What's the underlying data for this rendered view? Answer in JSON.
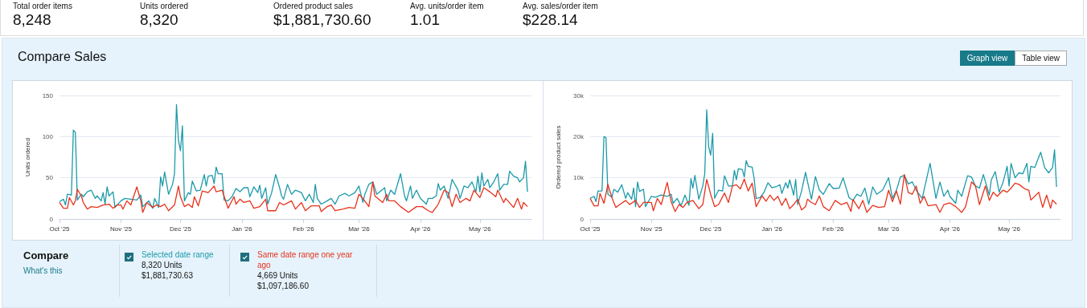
{
  "chart_data": [
    {
      "type": "other",
      "annotations": [
        "Total order items",
        "8,248",
        "Units ordered",
        "8,320",
        "Ordered product sales",
        "$1,881,730.60",
        "Avg. units/order item",
        "1.01",
        "Avg. sales/order item",
        "$228.14"
      ]
    },
    {
      "type": "other",
      "title": "Compare Sales",
      "annotations": [
        "Graph view",
        "Table view"
      ]
    },
    {
      "type": "line",
      "ylabel": "Units ordered",
      "grid": "y",
      "marker": "none",
      "xlim": [
        "2025-10-01",
        "2026-05-27"
      ],
      "xticks": [
        {
          "value": "2025-10-01",
          "label": "Oct '25"
        },
        {
          "value": "2025-11-01",
          "label": "Nov '25"
        },
        {
          "value": "2025-12-01",
          "label": "Dec '25"
        },
        {
          "value": "2026-01-01",
          "label": "Jan '26"
        },
        {
          "value": "2026-02-01",
          "label": "Feb '26"
        },
        {
          "value": "2026-03-01",
          "label": "Mar '26"
        },
        {
          "value": "2026-04-01",
          "label": "Apr '26"
        },
        {
          "value": "2026-05-01",
          "label": "May '26"
        }
      ],
      "ylim": [
        0,
        150
      ],
      "yticks": [
        0,
        50,
        100,
        150
      ],
      "series": [
        {
          "color": "#1c9aaa",
          "x": [
            "2025-10-01",
            "2025-10-03",
            "2025-10-04",
            "2025-10-05",
            "2025-10-07",
            "2025-10-08",
            "2025-10-09",
            "2025-10-10",
            "2025-10-12",
            "2025-10-13",
            "2025-10-15",
            "2025-10-17",
            "2025-10-19",
            "2025-10-20",
            "2025-10-22",
            "2025-10-23",
            "2025-10-24",
            "2025-10-25",
            "2025-10-26",
            "2025-10-28",
            "2025-10-29",
            "2025-11-01",
            "2025-11-03",
            "2025-11-06",
            "2025-11-09",
            "2025-11-11",
            "2025-11-12",
            "2025-11-15",
            "2025-11-17",
            "2025-11-18",
            "2025-11-20",
            "2025-11-21",
            "2025-11-22",
            "2025-11-23",
            "2025-11-25",
            "2025-11-27",
            "2025-11-28",
            "2025-11-29",
            "2025-11-30",
            "2025-12-01",
            "2025-12-02",
            "2025-12-03",
            "2025-12-05",
            "2025-12-06",
            "2025-12-07",
            "2025-12-09",
            "2025-12-11",
            "2025-12-13",
            "2025-12-14",
            "2025-12-15",
            "2025-12-17",
            "2025-12-18",
            "2025-12-19",
            "2025-12-20",
            "2025-12-22",
            "2025-12-23",
            "2025-12-25",
            "2025-12-27",
            "2025-12-29",
            "2025-12-31",
            "2026-01-02",
            "2026-01-04",
            "2026-01-05",
            "2026-01-07",
            "2026-01-09",
            "2026-01-10",
            "2026-01-11",
            "2026-01-13",
            "2026-01-14",
            "2026-01-16",
            "2026-01-18",
            "2026-01-20",
            "2026-01-21",
            "2026-01-22",
            "2026-01-24",
            "2026-01-26",
            "2026-01-28",
            "2026-01-31",
            "2026-02-02",
            "2026-02-04",
            "2026-02-06",
            "2026-02-07",
            "2026-02-08",
            "2026-02-10",
            "2026-02-13",
            "2026-02-15",
            "2026-02-17",
            "2026-02-19",
            "2026-02-22",
            "2026-02-24",
            "2026-02-27",
            "2026-03-01",
            "2026-03-03",
            "2026-03-04",
            "2026-03-06",
            "2026-03-08",
            "2026-03-10",
            "2026-03-11",
            "2026-03-14",
            "2026-03-15",
            "2026-03-17",
            "2026-03-19",
            "2026-03-22",
            "2026-03-24",
            "2026-03-25",
            "2026-03-27",
            "2026-03-28",
            "2026-03-30",
            "2026-04-01",
            "2026-04-04",
            "2026-04-05",
            "2026-04-07",
            "2026-04-09",
            "2026-04-10",
            "2026-04-11",
            "2026-04-13",
            "2026-04-15",
            "2026-04-17",
            "2026-04-20",
            "2026-04-21",
            "2026-04-23",
            "2026-04-25",
            "2026-04-27",
            "2026-04-29",
            "2026-04-30",
            "2026-05-01",
            "2026-05-02",
            "2026-05-03",
            "2026-05-05",
            "2026-05-06",
            "2026-05-08",
            "2026-05-10",
            "2026-05-11",
            "2026-05-13",
            "2026-05-15",
            "2026-05-16",
            "2026-05-18",
            "2026-05-20",
            "2026-05-21",
            "2026-05-23",
            "2026-05-24",
            "2026-05-25"
          ],
          "values": [
            21,
            24,
            17,
            30,
            29,
            108,
            105,
            23,
            30,
            27,
            33,
            35,
            25,
            28,
            22,
            32,
            18,
            39,
            28,
            33,
            14,
            22,
            25,
            24,
            23,
            29,
            15,
            22,
            13,
            25,
            14,
            51,
            40,
            57,
            30,
            42,
            55,
            139,
            95,
            83,
            113,
            22,
            32,
            30,
            46,
            34,
            35,
            54,
            40,
            52,
            53,
            43,
            63,
            55,
            55,
            23,
            22,
            27,
            37,
            33,
            38,
            38,
            27,
            39,
            32,
            41,
            25,
            38,
            18,
            32,
            54,
            38,
            28,
            24,
            42,
            30,
            35,
            32,
            22,
            30,
            20,
            42,
            25,
            18,
            22,
            25,
            18,
            28,
            31,
            28,
            32,
            40,
            20,
            30,
            42,
            45,
            30,
            32,
            38,
            22,
            35,
            30,
            55,
            28,
            22,
            40,
            25,
            35,
            25,
            18,
            25,
            25,
            28,
            43,
            35,
            40,
            25,
            48,
            35,
            25,
            40,
            38,
            45,
            33,
            52,
            33,
            56,
            40,
            48,
            38,
            45,
            55,
            35,
            42,
            42,
            58,
            52,
            50,
            45,
            50,
            70,
            33
          ]
        },
        {
          "color": "#e8321c",
          "x": [
            "2025-10-01",
            "2025-10-03",
            "2025-10-05",
            "2025-10-06",
            "2025-10-08",
            "2025-10-09",
            "2025-10-10",
            "2025-10-12",
            "2025-10-13",
            "2025-10-15",
            "2025-10-17",
            "2025-10-20",
            "2025-10-23",
            "2025-10-26",
            "2025-10-28",
            "2025-10-30",
            "2025-11-01",
            "2025-11-02",
            "2025-11-04",
            "2025-11-06",
            "2025-11-09",
            "2025-11-11",
            "2025-11-12",
            "2025-11-14",
            "2025-11-17",
            "2025-11-19",
            "2025-11-21",
            "2025-11-23",
            "2025-11-25",
            "2025-11-28",
            "2025-11-30",
            "2025-12-01",
            "2025-12-03",
            "2025-12-05",
            "2025-12-07",
            "2025-12-08",
            "2025-12-10",
            "2025-12-12",
            "2025-12-15",
            "2025-12-18",
            "2025-12-19",
            "2025-12-22",
            "2025-12-25",
            "2025-12-28",
            "2025-12-29",
            "2025-12-31",
            "2026-01-02",
            "2026-01-05",
            "2026-01-07",
            "2026-01-10",
            "2026-01-13",
            "2026-01-14",
            "2026-01-18",
            "2026-01-20",
            "2026-01-22",
            "2026-01-26",
            "2026-01-28",
            "2026-01-31",
            "2026-02-02",
            "2026-02-05",
            "2026-02-09",
            "2026-02-10",
            "2026-02-13",
            "2026-02-15",
            "2026-02-17",
            "2026-02-21",
            "2026-02-24",
            "2026-02-27",
            "2026-03-01",
            "2026-03-03",
            "2026-03-06",
            "2026-03-08",
            "2026-03-09",
            "2026-03-13",
            "2026-03-15",
            "2026-03-16",
            "2026-03-19",
            "2026-03-22",
            "2026-03-26",
            "2026-03-30",
            "2026-04-02",
            "2026-04-05",
            "2026-04-07",
            "2026-04-10",
            "2026-04-13",
            "2026-04-15",
            "2026-04-17",
            "2026-04-19",
            "2026-04-21",
            "2026-04-24",
            "2026-04-26",
            "2026-04-28",
            "2026-05-01",
            "2026-05-03",
            "2026-05-06",
            "2026-05-09",
            "2026-05-10",
            "2026-05-13",
            "2026-05-14",
            "2026-05-18",
            "2026-05-20",
            "2026-05-22",
            "2026-05-23",
            "2026-05-25"
          ],
          "values": [
            20,
            13,
            13,
            26,
            17,
            22,
            36,
            28,
            20,
            12,
            15,
            14,
            17,
            18,
            13,
            17,
            17,
            12,
            22,
            17,
            39,
            22,
            8,
            20,
            14,
            17,
            15,
            18,
            10,
            17,
            40,
            27,
            15,
            18,
            14,
            27,
            16,
            34,
            32,
            40,
            33,
            35,
            13,
            27,
            18,
            24,
            20,
            22,
            13,
            15,
            24,
            10,
            10,
            20,
            17,
            22,
            12,
            20,
            10,
            16,
            16,
            9,
            15,
            17,
            10,
            12,
            14,
            13,
            30,
            25,
            15,
            45,
            28,
            20,
            30,
            22,
            22,
            15,
            8,
            15,
            15,
            10,
            8,
            18,
            35,
            32,
            15,
            30,
            20,
            25,
            22,
            35,
            26,
            38,
            33,
            27,
            35,
            20,
            25,
            14,
            25,
            12,
            20,
            15
          ]
        }
      ]
    },
    {
      "type": "line",
      "ylabel": "Ordered product sales",
      "grid": "y",
      "marker": "none",
      "xlim": [
        "2025-10-01",
        "2026-05-27"
      ],
      "xticks": [
        {
          "value": "2025-10-01",
          "label": "Oct '25"
        },
        {
          "value": "2025-11-01",
          "label": "Nov '25"
        },
        {
          "value": "2025-12-01",
          "label": "Dec '25"
        },
        {
          "value": "2026-01-01",
          "label": "Jan '26"
        },
        {
          "value": "2026-02-01",
          "label": "Feb '26"
        },
        {
          "value": "2026-03-01",
          "label": "Mar '26"
        },
        {
          "value": "2026-04-01",
          "label": "Apr '26"
        },
        {
          "value": "2026-05-01",
          "label": "May '26"
        }
      ],
      "ylim": [
        0,
        30000
      ],
      "yticks": [
        0,
        {
          "value": 10000,
          "label": "10k"
        },
        {
          "value": 20000,
          "label": "20k"
        },
        {
          "value": 30000,
          "label": "30k"
        }
      ],
      "series": [
        {
          "color": "#1c9aaa",
          "x": [
            "2025-10-01",
            "2025-10-03",
            "2025-10-04",
            "2025-10-05",
            "2025-10-07",
            "2025-10-08",
            "2025-10-09",
            "2025-10-10",
            "2025-10-12",
            "2025-10-13",
            "2025-10-15",
            "2025-10-17",
            "2025-10-19",
            "2025-10-20",
            "2025-10-22",
            "2025-10-23",
            "2025-10-24",
            "2025-10-25",
            "2025-10-26",
            "2025-10-28",
            "2025-10-29",
            "2025-11-01",
            "2025-11-03",
            "2025-11-06",
            "2025-11-09",
            "2025-11-11",
            "2025-11-12",
            "2025-11-14",
            "2025-11-16",
            "2025-11-18",
            "2025-11-20",
            "2025-11-21",
            "2025-11-22",
            "2025-11-23",
            "2025-11-25",
            "2025-11-27",
            "2025-11-28",
            "2025-11-29",
            "2025-11-30",
            "2025-12-01",
            "2025-12-02",
            "2025-12-03",
            "2025-12-05",
            "2025-12-07",
            "2025-12-08",
            "2025-12-10",
            "2025-12-12",
            "2025-12-13",
            "2025-12-14",
            "2025-12-15",
            "2025-12-17",
            "2025-12-18",
            "2025-12-19",
            "2025-12-20",
            "2025-12-22",
            "2025-12-23",
            "2025-12-24",
            "2025-12-26",
            "2025-12-28",
            "2025-12-30",
            "2026-01-01",
            "2026-01-03",
            "2026-01-05",
            "2026-01-06",
            "2026-01-08",
            "2026-01-09",
            "2026-01-10",
            "2026-01-12",
            "2026-01-13",
            "2026-01-14",
            "2026-01-16",
            "2026-01-18",
            "2026-01-20",
            "2026-01-21",
            "2026-01-23",
            "2026-01-25",
            "2026-01-27",
            "2026-01-30",
            "2026-02-01",
            "2026-02-04",
            "2026-02-06",
            "2026-02-09",
            "2026-02-11",
            "2026-02-13",
            "2026-02-15",
            "2026-02-17",
            "2026-02-19",
            "2026-02-21",
            "2026-02-23",
            "2026-02-26",
            "2026-03-01",
            "2026-03-03",
            "2026-03-05",
            "2026-03-07",
            "2026-03-09",
            "2026-03-11",
            "2026-03-13",
            "2026-03-15",
            "2026-03-18",
            "2026-03-20",
            "2026-03-22",
            "2026-03-25",
            "2026-03-27",
            "2026-03-29",
            "2026-03-31",
            "2026-04-01",
            "2026-04-04",
            "2026-04-05",
            "2026-04-07",
            "2026-04-10",
            "2026-04-12",
            "2026-04-14",
            "2026-04-16",
            "2026-04-18",
            "2026-04-21",
            "2026-04-22",
            "2026-04-24",
            "2026-04-26",
            "2026-04-28",
            "2026-04-30",
            "2026-05-01",
            "2026-05-02",
            "2026-05-04",
            "2026-05-06",
            "2026-05-08",
            "2026-05-10",
            "2026-05-11",
            "2026-05-12",
            "2026-05-14",
            "2026-05-17",
            "2026-05-19",
            "2026-05-21",
            "2026-05-23",
            "2026-05-24",
            "2026-05-25"
          ],
          "values": [
            5000,
            5500,
            4200,
            6800,
            6800,
            20000,
            19800,
            6000,
            5300,
            7200,
            6500,
            8300,
            5000,
            6400,
            4800,
            7500,
            3000,
            9000,
            6700,
            7200,
            3000,
            5500,
            5300,
            5800,
            5500,
            6000,
            3800,
            5000,
            3200,
            5800,
            3300,
            9800,
            7500,
            10600,
            4800,
            8000,
            11000,
            26500,
            17500,
            15500,
            20800,
            5000,
            7000,
            6800,
            10500,
            8000,
            8000,
            11800,
            9500,
            12200,
            12000,
            10200,
            14200,
            12800,
            12600,
            9800,
            5000,
            5200,
            6500,
            8800,
            7600,
            7800,
            8300,
            6200,
            8800,
            7500,
            9500,
            5800,
            9600,
            3500,
            6800,
            11300,
            6900,
            4800,
            10300,
            7000,
            6000,
            8600,
            7400,
            7500,
            10000,
            5200,
            4500,
            6000,
            5500,
            7500,
            3600,
            7800,
            6000,
            7000,
            10000,
            5000,
            7000,
            10200,
            10600,
            8500,
            9000,
            7000,
            5000,
            9200,
            13500,
            5000,
            9000,
            5500,
            7000,
            5500,
            3800,
            7000,
            5500,
            10500,
            10200,
            8000,
            7500,
            10800,
            5800,
            9500,
            11500,
            6500,
            9000,
            12800,
            8000,
            13500,
            10000,
            11200,
            11000,
            13500,
            9000,
            12800,
            12500,
            16200,
            12500,
            11200,
            12500,
            16800,
            7800
          ]
        },
        {
          "color": "#e8321c",
          "x": [
            "2025-10-01",
            "2025-10-03",
            "2025-10-05",
            "2025-10-06",
            "2025-10-08",
            "2025-10-10",
            "2025-10-12",
            "2025-10-14",
            "2025-10-16",
            "2025-10-19",
            "2025-10-21",
            "2025-10-24",
            "2025-10-26",
            "2025-10-28",
            "2025-11-01",
            "2025-11-02",
            "2025-11-04",
            "2025-11-06",
            "2025-11-09",
            "2025-11-11",
            "2025-11-13",
            "2025-11-15",
            "2025-11-17",
            "2025-11-19",
            "2025-11-22",
            "2025-11-25",
            "2025-11-27",
            "2025-11-29",
            "2025-12-01",
            "2025-12-03",
            "2025-12-05",
            "2025-12-08",
            "2025-12-10",
            "2025-12-12",
            "2025-12-14",
            "2025-12-16",
            "2025-12-18",
            "2025-12-20",
            "2025-12-22",
            "2025-12-24",
            "2025-12-27",
            "2025-12-29",
            "2025-12-31",
            "2026-01-02",
            "2026-01-04",
            "2026-01-06",
            "2026-01-08",
            "2026-01-10",
            "2026-01-12",
            "2026-01-14",
            "2026-01-16",
            "2026-01-18",
            "2026-01-19",
            "2026-01-21",
            "2026-01-23",
            "2026-01-25",
            "2026-01-27",
            "2026-01-30",
            "2026-02-02",
            "2026-02-05",
            "2026-02-08",
            "2026-02-10",
            "2026-02-11",
            "2026-02-14",
            "2026-02-16",
            "2026-02-18",
            "2026-02-21",
            "2026-02-24",
            "2026-02-27",
            "2026-03-01",
            "2026-03-03",
            "2026-03-05",
            "2026-03-07",
            "2026-03-09",
            "2026-03-11",
            "2026-03-13",
            "2026-03-15",
            "2026-03-17",
            "2026-03-19",
            "2026-03-21",
            "2026-03-25",
            "2026-03-27",
            "2026-03-29",
            "2026-04-01",
            "2026-04-04",
            "2026-04-07",
            "2026-04-09",
            "2026-04-12",
            "2026-04-14",
            "2026-04-16",
            "2026-04-19",
            "2026-04-21",
            "2026-04-23",
            "2026-04-25",
            "2026-04-28",
            "2026-04-30",
            "2026-05-02",
            "2026-05-04",
            "2026-05-06",
            "2026-05-09",
            "2026-05-11",
            "2026-05-12",
            "2026-05-14",
            "2026-05-16",
            "2026-05-18",
            "2026-05-20",
            "2026-05-22",
            "2026-05-23",
            "2026-05-25"
          ],
          "values": [
            5000,
            3200,
            3200,
            6200,
            3800,
            8400,
            5200,
            2800,
            3500,
            4500,
            3500,
            4500,
            2800,
            4000,
            4000,
            2000,
            5000,
            3500,
            8900,
            4200,
            1800,
            3500,
            2800,
            4000,
            4500,
            2500,
            3500,
            9600,
            6000,
            3000,
            3500,
            6300,
            4000,
            8000,
            8300,
            7300,
            9700,
            6800,
            8700,
            3000,
            5600,
            4300,
            5800,
            4500,
            5500,
            3300,
            5000,
            2500,
            3500,
            4800,
            2200,
            3000,
            4800,
            4000,
            3500,
            5600,
            3000,
            2000,
            4500,
            3500,
            4000,
            1800,
            4700,
            2500,
            4500,
            1600,
            3300,
            2800,
            3000,
            7000,
            4200,
            6800,
            3600,
            10800,
            6400,
            6000,
            8000,
            3800,
            5500,
            3200,
            3500,
            1600,
            3500,
            3900,
            3000,
            1600,
            3000,
            9000,
            8000,
            3500,
            8000,
            4500,
            6500,
            5500,
            7000,
            6500,
            7500,
            8700,
            8400,
            7300,
            7000,
            4600,
            5500,
            6500,
            2800,
            5800,
            2600,
            4600,
            3600
          ]
        }
      ]
    },
    {
      "type": "other",
      "title": "Compare",
      "annotations": [
        "What's this",
        "Selected date range",
        "8,320 Units",
        "$1,881,730.63",
        "Same date range one year ago",
        "4,669 Units",
        "$1,097,186.60"
      ]
    }
  ]
}
